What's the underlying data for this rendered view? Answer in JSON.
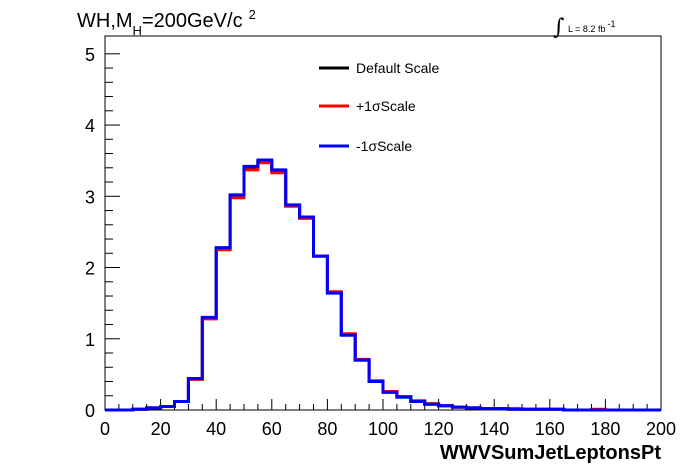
{
  "chart_data": {
    "type": "line",
    "title_main": "WH,M",
    "title_sub": "H",
    "title_rest": "=200GeV/c",
    "title_sup": "2",
    "luminosity": {
      "text": "L = 8.2 fb",
      "exponent": "-1"
    },
    "xlabel": "WWVSumJetLeptonsPt",
    "ylabel": "",
    "xlim": [
      0,
      200
    ],
    "ylim": [
      0,
      5.25
    ],
    "x_ticks": [
      "0",
      "20",
      "40",
      "60",
      "80",
      "100",
      "120",
      "140",
      "160",
      "180",
      "200"
    ],
    "y_ticks": [
      "0",
      "1",
      "2",
      "3",
      "4",
      "5"
    ],
    "bin_width": 5,
    "bin_edges_start": 0,
    "legend_position": "top-center",
    "series": [
      {
        "name": "Default Scale",
        "color": "#000000",
        "values": [
          0.0,
          0.0,
          0.01,
          0.03,
          0.05,
          0.12,
          0.44,
          1.29,
          2.27,
          3.01,
          3.41,
          3.49,
          3.36,
          2.87,
          2.7,
          2.16,
          1.65,
          1.06,
          0.7,
          0.4,
          0.25,
          0.18,
          0.12,
          0.08,
          0.06,
          0.04,
          0.03,
          0.02,
          0.02,
          0.01,
          0.01,
          0.01,
          0.01,
          0.0,
          0.0,
          0.0,
          0.0,
          0.0,
          0.0,
          0.0
        ]
      },
      {
        "name": "+1σScale",
        "color": "#ff0000",
        "values": [
          0.0,
          0.0,
          0.01,
          0.03,
          0.05,
          0.12,
          0.43,
          1.28,
          2.25,
          2.98,
          3.37,
          3.47,
          3.33,
          2.86,
          2.69,
          2.16,
          1.66,
          1.07,
          0.71,
          0.41,
          0.26,
          0.19,
          0.13,
          0.09,
          0.06,
          0.04,
          0.03,
          0.02,
          0.02,
          0.02,
          0.01,
          0.01,
          0.01,
          0.0,
          0.0,
          0.01,
          0.0,
          0.0,
          0.0,
          0.0
        ]
      },
      {
        "name": "-1σScale",
        "color": "#0000ff",
        "values": [
          0.0,
          0.0,
          0.01,
          0.03,
          0.05,
          0.12,
          0.44,
          1.3,
          2.28,
          3.02,
          3.42,
          3.51,
          3.37,
          2.88,
          2.71,
          2.16,
          1.64,
          1.05,
          0.7,
          0.4,
          0.25,
          0.18,
          0.12,
          0.08,
          0.06,
          0.04,
          0.03,
          0.02,
          0.02,
          0.01,
          0.01,
          0.01,
          0.01,
          0.0,
          0.0,
          0.0,
          0.0,
          0.0,
          0.0,
          0.0
        ]
      }
    ]
  }
}
